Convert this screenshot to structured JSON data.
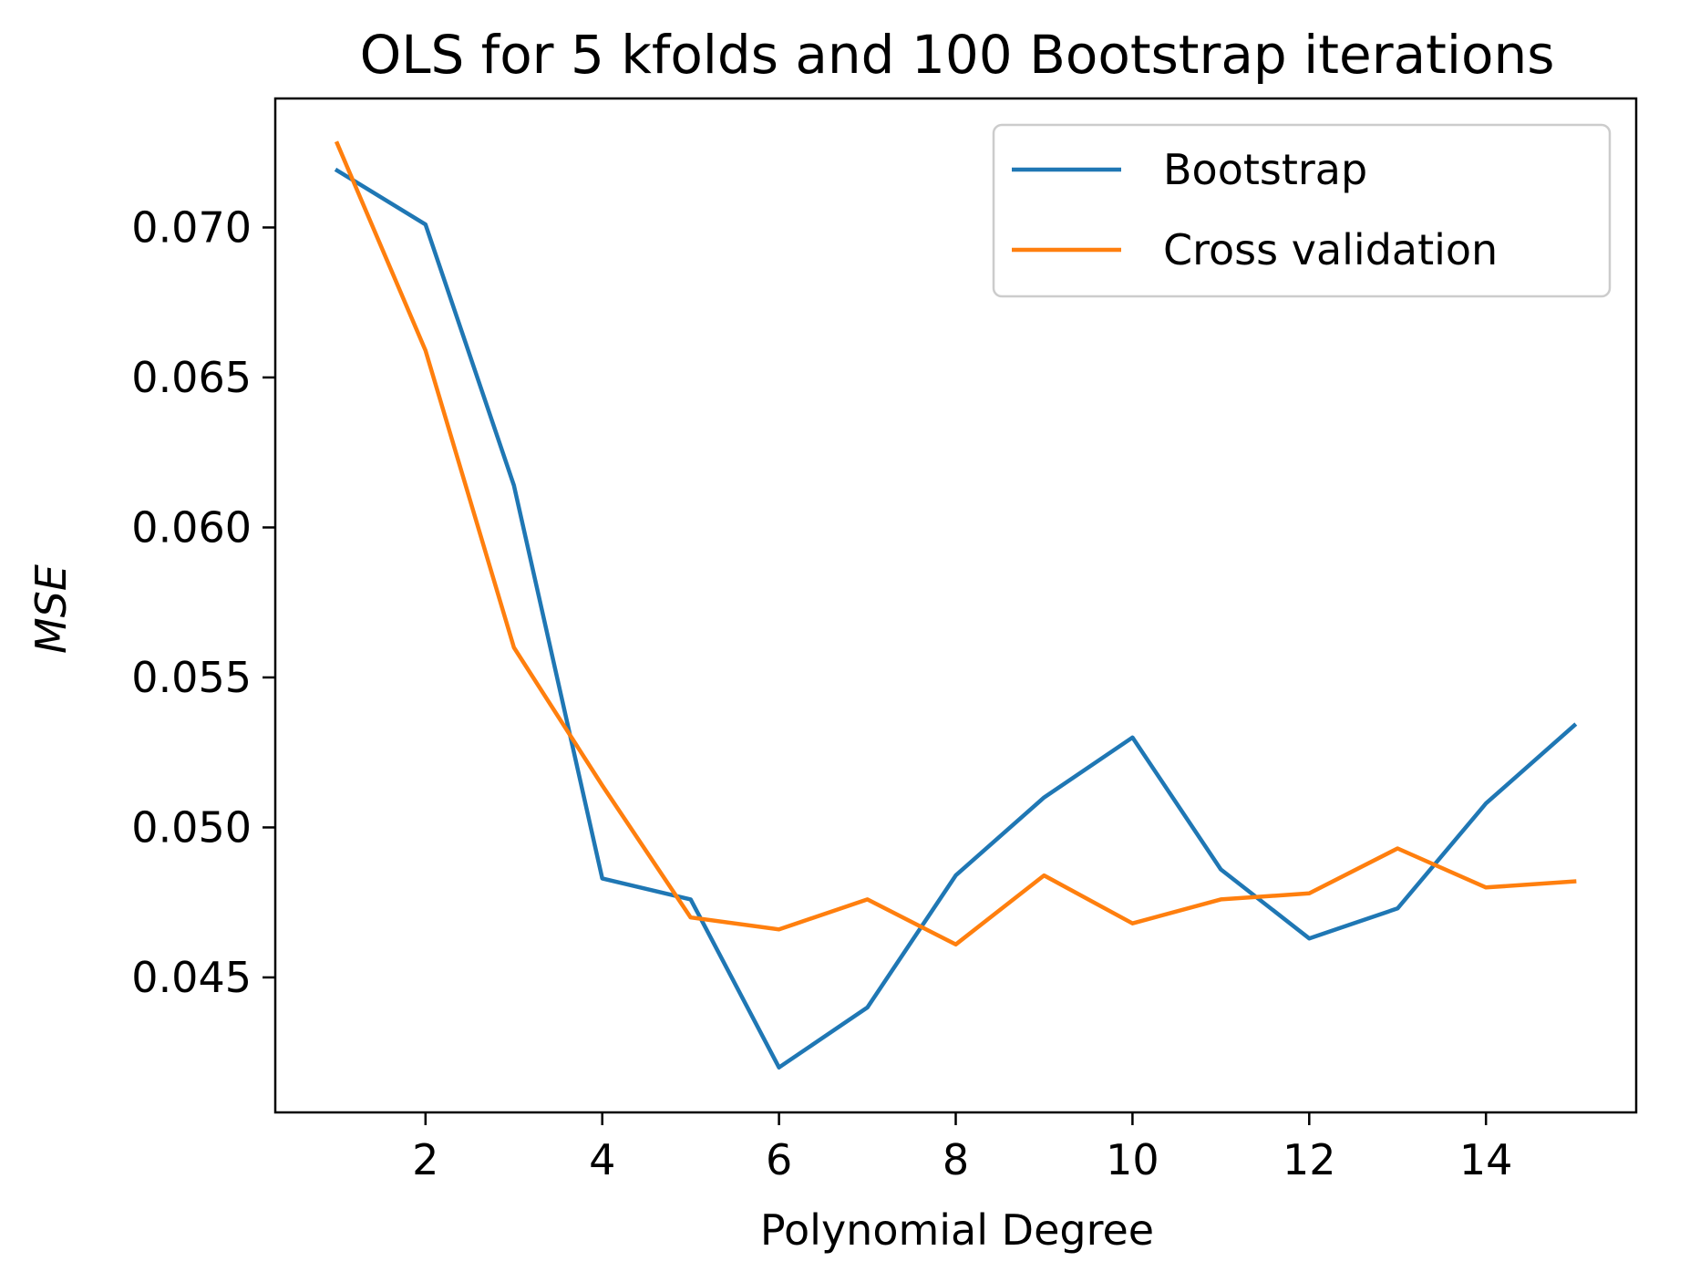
{
  "chart_data": {
    "type": "line",
    "title": "OLS for 5 kfolds and 100 Bootstrap iterations",
    "xlabel": "Polynomial Degree",
    "ylabel": "MSE",
    "x": [
      1,
      2,
      3,
      4,
      5,
      6,
      7,
      8,
      9,
      10,
      11,
      12,
      13,
      14,
      15
    ],
    "xlim": [
      0.3,
      15.7
    ],
    "ylim": [
      0.0405,
      0.0743
    ],
    "xticks": [
      2,
      4,
      6,
      8,
      10,
      12,
      14
    ],
    "xtick_labels": [
      "2",
      "4",
      "6",
      "8",
      "10",
      "12",
      "14"
    ],
    "yticks": [
      0.045,
      0.05,
      0.055,
      0.06,
      0.065,
      0.07
    ],
    "ytick_labels": [
      "0.045",
      "0.050",
      "0.055",
      "0.060",
      "0.065",
      "0.070"
    ],
    "grid": false,
    "legend_position": "top-right",
    "series": [
      {
        "name": "Bootstrap",
        "color": "#1f77b4",
        "values": [
          0.0719,
          0.0701,
          0.0614,
          0.0483,
          0.0476,
          0.042,
          0.044,
          0.0484,
          0.051,
          0.053,
          0.0486,
          0.0463,
          0.0473,
          0.0508,
          0.0534
        ]
      },
      {
        "name": "Cross validation",
        "color": "#ff7f0e",
        "values": [
          0.0728,
          0.0659,
          0.056,
          0.0514,
          0.047,
          0.0466,
          0.0476,
          0.0461,
          0.0484,
          0.0468,
          0.0476,
          0.0478,
          0.0493,
          0.048,
          0.0482
        ]
      }
    ]
  }
}
